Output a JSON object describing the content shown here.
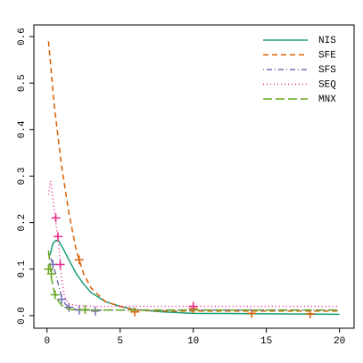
{
  "chart_data": {
    "type": "line",
    "xlim": [
      -0.9,
      21
    ],
    "xticks": [
      0,
      5,
      10,
      15,
      20
    ],
    "ylim": [
      -0.027,
      0.625
    ],
    "yticks": [
      {
        "value": 0,
        "label": "0.0"
      },
      0.1,
      0.2,
      0.3,
      0.4,
      0.5,
      0.6
    ],
    "legend": "topright",
    "series": [
      {
        "name": "NIS",
        "color": "#1b9e77",
        "linestyle": "solid",
        "x": [
          0.2,
          0.4,
          0.6,
          0.8,
          1,
          1.5,
          2,
          2.5,
          3,
          4,
          5,
          6,
          8,
          10,
          15,
          20
        ],
        "values": [
          0.13,
          0.155,
          0.162,
          0.16,
          0.15,
          0.12,
          0.09,
          0.068,
          0.05,
          0.03,
          0.02,
          0.013,
          0.008,
          0.005,
          0.004,
          0.003
        ]
      },
      {
        "name": "SFE",
        "color": "#d95f02",
        "linestyle": "dashed",
        "x": [
          0.1,
          0.5,
          1,
          1.5,
          2,
          2.5,
          3,
          4,
          5,
          6,
          8,
          10,
          14,
          18,
          20
        ],
        "values": [
          0.59,
          0.45,
          0.32,
          0.22,
          0.14,
          0.09,
          0.06,
          0.03,
          0.02,
          0.012,
          0.01,
          0.01,
          0.01,
          0.01,
          0.01
        ],
        "markers": {
          "x": [
            2.2,
            6,
            10,
            14,
            18
          ],
          "values": [
            0.12,
            0.008,
            0.015,
            0.005,
            0.004
          ]
        }
      },
      {
        "name": "SFS",
        "color": "#7570b3",
        "linestyle": "dotdash",
        "x": [
          0.1,
          0.3,
          0.5,
          0.75,
          1,
          1.25,
          1.5,
          2,
          3,
          5,
          10,
          15,
          20
        ],
        "values": [
          0.13,
          0.12,
          0.1,
          0.07,
          0.04,
          0.025,
          0.018,
          0.013,
          0.012,
          0.012,
          0.012,
          0.012,
          0.012
        ],
        "markers": {
          "x": [
            0.4,
            1,
            1.5,
            2.2,
            3.3
          ],
          "values": [
            0.11,
            0.035,
            0.018,
            0.012,
            0.01
          ]
        }
      },
      {
        "name": "SEQ",
        "color": "#e7298a",
        "linestyle": "dotted",
        "x": [
          0.1,
          0.25,
          0.4,
          0.6,
          0.8,
          1,
          1.2,
          1.5,
          2,
          3,
          5,
          10,
          15,
          20
        ],
        "values": [
          0.26,
          0.29,
          0.25,
          0.2,
          0.15,
          0.08,
          0.04,
          0.025,
          0.022,
          0.02,
          0.02,
          0.02,
          0.02,
          0.02
        ],
        "markers": {
          "x": [
            0.6,
            0.75,
            0.9,
            10
          ],
          "values": [
            0.21,
            0.17,
            0.11,
            0.02
          ]
        }
      },
      {
        "name": "MNX",
        "color": "#66a61e",
        "linestyle": "longdash",
        "x": [
          0.1,
          0.3,
          0.5,
          0.7,
          1,
          1.3,
          1.7,
          2.5,
          4,
          10,
          20
        ],
        "values": [
          0.14,
          0.08,
          0.05,
          0.035,
          0.022,
          0.016,
          0.013,
          0.012,
          0.012,
          0.012,
          0.012
        ],
        "markers": {
          "x": [
            0.1,
            0.3,
            0.55,
            2.6
          ],
          "values": [
            0.1,
            0.09,
            0.045,
            0.013
          ]
        }
      }
    ]
  }
}
